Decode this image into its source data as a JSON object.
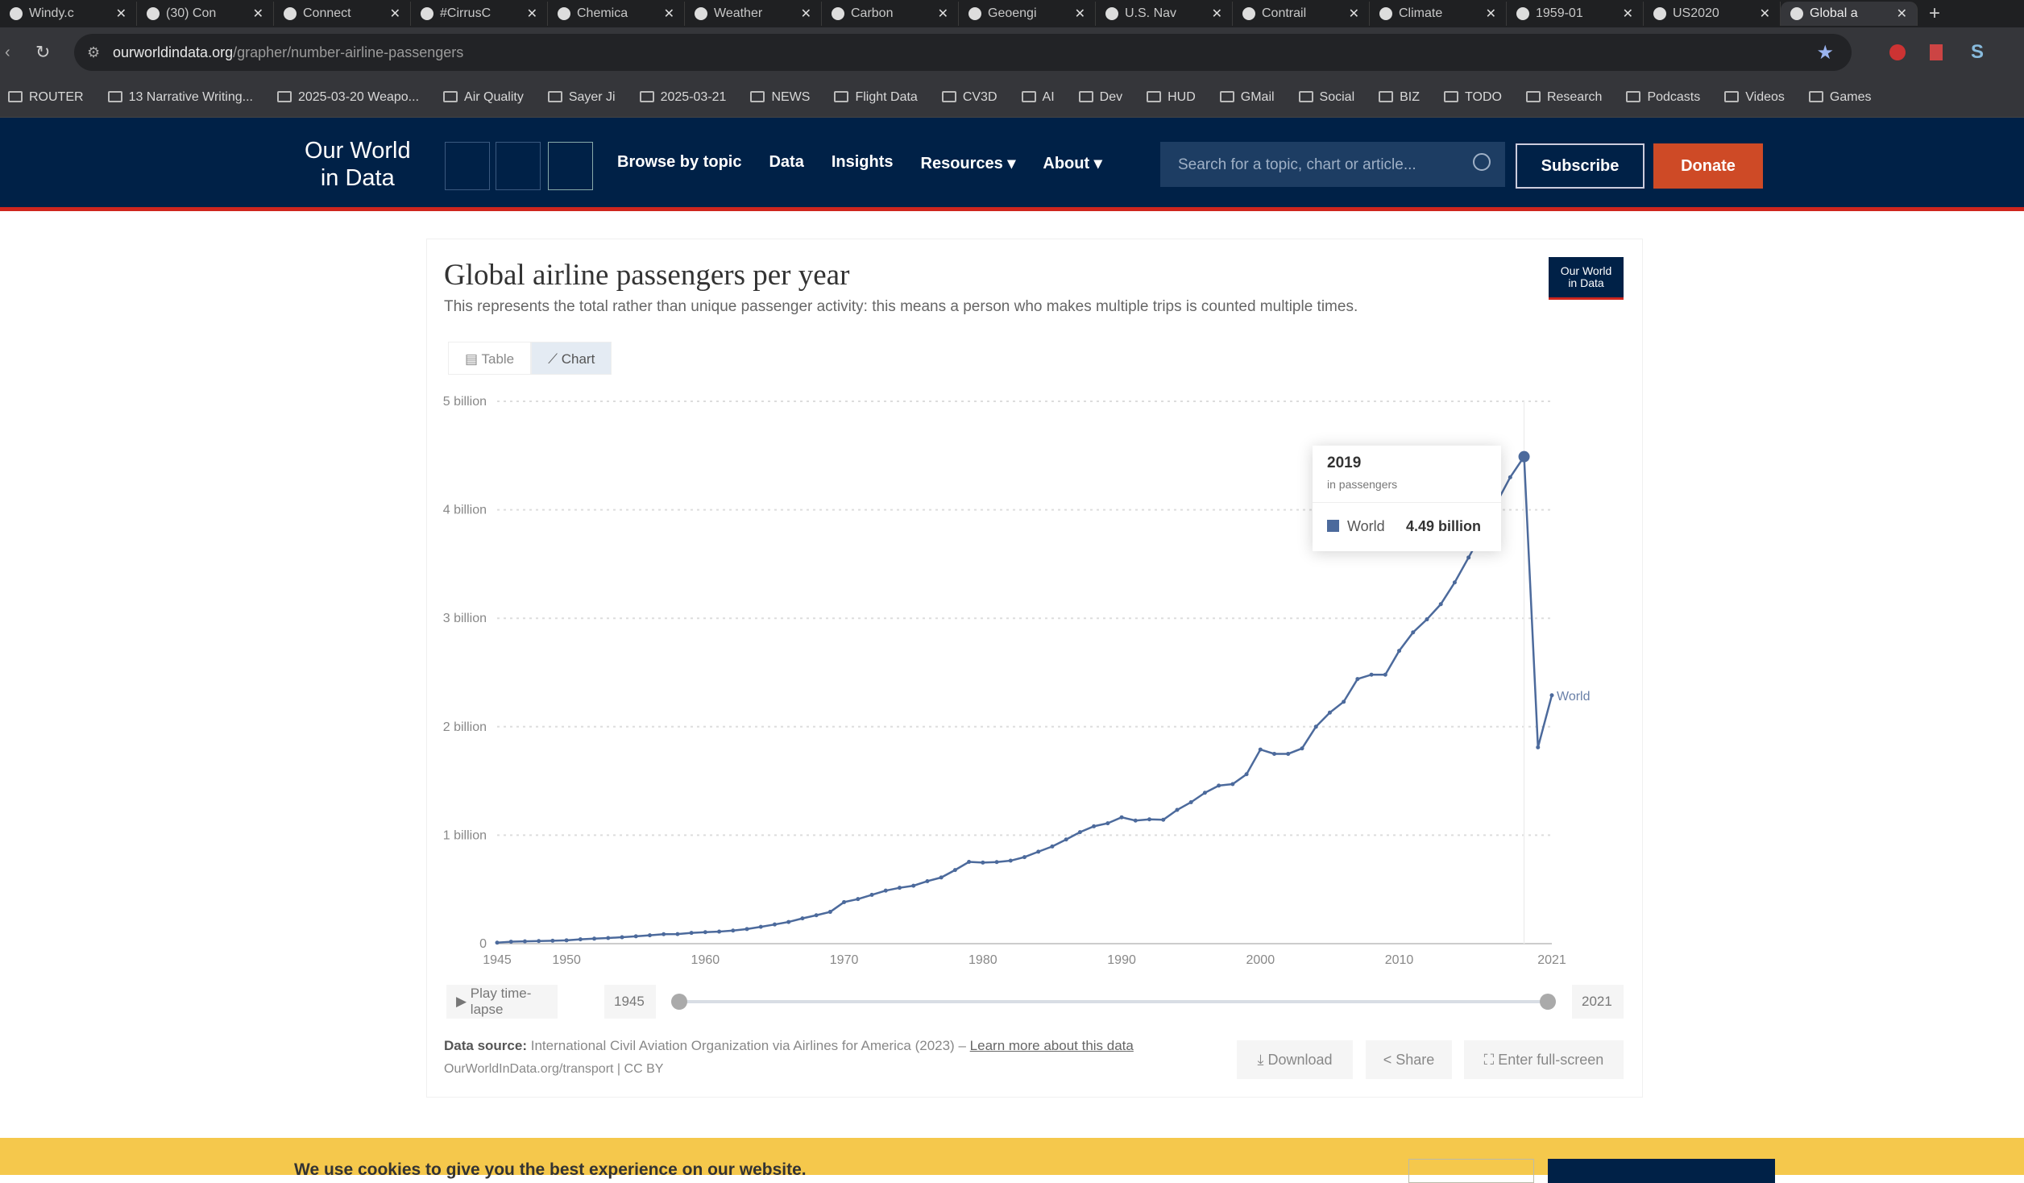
{
  "browser": {
    "tabs": [
      "Windy.c",
      "(30) Con",
      "Connect",
      "#CirrusC",
      "Chemica",
      "Weather",
      "Carbon",
      "Geoengi",
      "U.S. Nav",
      "Contrail",
      "Climate",
      "1959-01",
      "US2020",
      "Global a"
    ],
    "url_domain": "ourworldindata.org",
    "url_path": "/grapher/number-airline-passengers",
    "bookmarks": [
      "ROUTER",
      "13 Narrative Writing...",
      "2025-03-20 Weapo...",
      "Air Quality",
      "Sayer Ji",
      "2025-03-21",
      "NEWS",
      "Flight Data",
      "CV3D",
      "AI",
      "Dev",
      "HUD",
      "GMail",
      "Social",
      "BIZ",
      "TODO",
      "Research",
      "Podcasts",
      "Videos",
      "Games"
    ]
  },
  "site": {
    "logo": "Our World in Data",
    "nav": [
      "Browse by topic",
      "Data",
      "Insights",
      "Resources ▾",
      "About ▾"
    ],
    "search_placeholder": "Search for a topic, chart or article...",
    "subscribe": "Subscribe",
    "donate": "Donate",
    "accent": "#ce261e",
    "navy": "#002147"
  },
  "chart_header": {
    "title": "Global airline passengers per year",
    "subtitle": "This represents the total rather than unique passenger activity: this means a person who makes multiple trips is counted multiple times.",
    "badge": "Our World in Data",
    "tabs": [
      "Table",
      "Chart"
    ],
    "active_tab": "Chart"
  },
  "tooltip": {
    "year": "2019",
    "unit": "in passengers",
    "series": "World",
    "value": "4.49 billion"
  },
  "timeline": {
    "play": "Play time-lapse",
    "start": "1945",
    "end": "2021"
  },
  "footer": {
    "source_label": "Data source:",
    "source": "International Civil Aviation Organization via Airlines for America (2023)",
    "sep": "–",
    "learn_more": "Learn more about this data",
    "license": "OurWorldInData.org/transport | CC BY",
    "download": "Download",
    "share": "Share",
    "fullscreen": "Enter full-screen"
  },
  "cookie": {
    "text": "We use cookies to give you the best experience on our website."
  },
  "chart_data": {
    "type": "line",
    "title": "Global airline passengers per year",
    "xlim": [
      1945,
      2021
    ],
    "ylim": [
      0,
      5000000000
    ],
    "yticks": [
      {
        "v": 0,
        "label": "0"
      },
      {
        "v": 1000000000,
        "label": "1 billion"
      },
      {
        "v": 2000000000,
        "label": "2 billion"
      },
      {
        "v": 3000000000,
        "label": "3 billion"
      },
      {
        "v": 4000000000,
        "label": "4 billion"
      },
      {
        "v": 5000000000,
        "label": "5 billion"
      }
    ],
    "xticks": [
      1945,
      1950,
      1960,
      1970,
      1980,
      1990,
      2000,
      2010,
      2021
    ],
    "grid": "horizontal dotted",
    "series": [
      {
        "name": "World",
        "color": "#4c6a9c",
        "x_start": 1945,
        "values_billion": [
          0.009,
          0.018,
          0.021,
          0.024,
          0.027,
          0.031,
          0.04,
          0.046,
          0.052,
          0.059,
          0.068,
          0.077,
          0.087,
          0.088,
          0.099,
          0.106,
          0.111,
          0.121,
          0.135,
          0.155,
          0.177,
          0.2,
          0.233,
          0.262,
          0.293,
          0.383,
          0.411,
          0.45,
          0.489,
          0.515,
          0.534,
          0.576,
          0.61,
          0.679,
          0.754,
          0.748,
          0.752,
          0.765,
          0.798,
          0.848,
          0.896,
          0.96,
          1.028,
          1.082,
          1.11,
          1.165,
          1.135,
          1.146,
          1.142,
          1.233,
          1.304,
          1.391,
          1.457,
          1.471,
          1.562,
          1.79,
          1.75,
          1.75,
          1.8,
          2.0,
          2.13,
          2.23,
          2.44,
          2.48,
          2.48,
          2.7,
          2.87,
          2.99,
          3.13,
          3.33,
          3.56,
          3.79,
          4.06,
          4.3,
          4.49,
          1.81,
          2.29
        ]
      }
    ],
    "highlight_year": 2019
  }
}
